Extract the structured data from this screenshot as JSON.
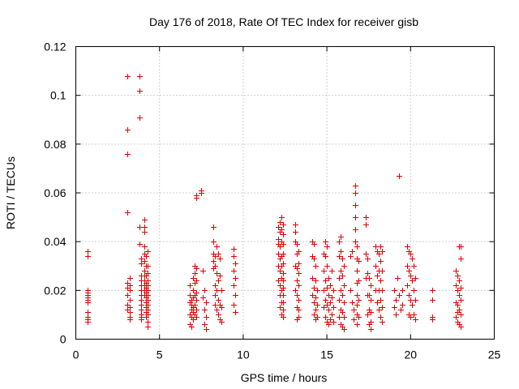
{
  "chart_data": {
    "type": "scatter",
    "title": "Day 176 of 2018, Rate Of TEC Index for receiver gisb",
    "xlabel": "GPS time / hours",
    "ylabel": "ROTI / TECUs",
    "xlim": [
      0,
      25
    ],
    "ylim": [
      0,
      0.12
    ],
    "xticks": [
      0,
      5,
      10,
      15,
      20,
      25
    ],
    "xtick_labels": [
      "0",
      "5",
      "10",
      "15",
      "20",
      "25"
    ],
    "yticks": [
      0,
      0.02,
      0.04,
      0.06,
      0.08,
      0.1,
      0.12
    ],
    "ytick_labels": [
      "0",
      "0.02",
      "0.04",
      "0.06",
      "0.08",
      "0.1",
      "0.12"
    ],
    "grid": true,
    "marker": "+",
    "color": "#e00000",
    "series": [
      {
        "name": "ROTI",
        "x": [
          0.7,
          0.7,
          0.7,
          0.7,
          0.7,
          0.7,
          0.7,
          0.7,
          0.7,
          0.7,
          0.7,
          0.7,
          3.1,
          3.1,
          3.1,
          3.1,
          3.1,
          3.1,
          3.1,
          3.1,
          3.1,
          3.2,
          3.2,
          3.2,
          3.2,
          3.2,
          3.2,
          3.2,
          3.2,
          3.8,
          3.8,
          3.8,
          3.8,
          3.8,
          3.9,
          3.9,
          3.9,
          3.9,
          3.9,
          3.9,
          3.9,
          3.9,
          3.9,
          3.9,
          3.9,
          3.9,
          3.9,
          4.1,
          4.1,
          4.1,
          4.1,
          4.1,
          4.1,
          4.1,
          4.1,
          4.1,
          4.1,
          4.1,
          4.1,
          4.2,
          4.2,
          4.2,
          4.2,
          4.2,
          4.2,
          4.2,
          4.2,
          4.2,
          4.2,
          4.2,
          4.3,
          4.3,
          4.3,
          4.3,
          4.3,
          4.3,
          4.3,
          4.3,
          4.3,
          4.3,
          4.3,
          4.3,
          4.3,
          6.8,
          6.8,
          6.8,
          6.8,
          6.8,
          6.9,
          6.9,
          6.9,
          6.9,
          6.9,
          7.0,
          7.0,
          7.0,
          7.0,
          7.0,
          7.0,
          7.1,
          7.1,
          7.1,
          7.1,
          7.1,
          7.1,
          7.2,
          7.2,
          7.2,
          7.2,
          7.2,
          7.2,
          7.2,
          7.2,
          7.5,
          7.5,
          7.6,
          7.6,
          7.7,
          7.7,
          7.7,
          7.8,
          7.8,
          7.8,
          8.2,
          8.2,
          8.2,
          8.2,
          8.2,
          8.3,
          8.3,
          8.3,
          8.3,
          8.3,
          8.4,
          8.4,
          8.4,
          8.4,
          8.5,
          8.5,
          8.5,
          8.5,
          8.6,
          8.6,
          8.6,
          8.6,
          8.7,
          8.7,
          8.7,
          9.4,
          9.4,
          9.4,
          9.4,
          9.4,
          9.5,
          9.5,
          9.5,
          9.5,
          12.1,
          12.1,
          12.1,
          12.1,
          12.1,
          12.1,
          12.2,
          12.2,
          12.2,
          12.2,
          12.2,
          12.2,
          12.2,
          12.2,
          12.3,
          12.3,
          12.3,
          12.3,
          12.3,
          12.3,
          12.3,
          12.3,
          12.3,
          12.4,
          12.4,
          12.4,
          12.4,
          12.4,
          12.4,
          12.4,
          12.4,
          12.4,
          12.4,
          12.4,
          12.4,
          13.1,
          13.1,
          13.1,
          13.1,
          13.1,
          13.2,
          13.2,
          13.2,
          13.2,
          13.2,
          13.2,
          13.2,
          13.3,
          13.3,
          13.3,
          13.3,
          13.3,
          13.3,
          13.3,
          14.1,
          14.1,
          14.1,
          14.1,
          14.2,
          14.2,
          14.2,
          14.2,
          14.2,
          14.3,
          14.3,
          14.3,
          14.3,
          14.3,
          14.4,
          14.4,
          14.4,
          14.8,
          14.8,
          14.8,
          14.8,
          14.9,
          14.9,
          14.9,
          14.9,
          14.9,
          15.0,
          15.0,
          15.0,
          15.0,
          15.0,
          15.1,
          15.1,
          15.1,
          15.1,
          15.2,
          15.2,
          15.2,
          15.3,
          15.3,
          15.3,
          15.4,
          15.4,
          15.4,
          15.7,
          15.7,
          15.7,
          15.7,
          15.7,
          15.8,
          15.8,
          15.8,
          15.8,
          15.8,
          15.8,
          15.9,
          15.9,
          15.9,
          15.9,
          15.9,
          16.0,
          16.0,
          16.0,
          16.0,
          16.0,
          16.4,
          16.4,
          16.5,
          16.5,
          16.6,
          16.6,
          16.7,
          16.7,
          16.7,
          16.7,
          16.7,
          16.7,
          16.8,
          16.8,
          16.8,
          16.8,
          16.8,
          16.8,
          16.8,
          16.8,
          16.9,
          16.9,
          16.9,
          16.9,
          17.3,
          17.3,
          17.3,
          17.3,
          17.4,
          17.4,
          17.4,
          17.4,
          17.5,
          17.5,
          17.5,
          17.5,
          17.6,
          17.6,
          17.6,
          17.6,
          17.6,
          17.9,
          17.9,
          17.9,
          18.0,
          18.0,
          18.0,
          18.1,
          18.1,
          18.1,
          18.1,
          18.2,
          18.2,
          18.2,
          18.2,
          18.2,
          18.3,
          18.3,
          18.3,
          18.3,
          18.3,
          19.0,
          19.0,
          19.1,
          19.1,
          19.2,
          19.3,
          19.3,
          19.4,
          19.5,
          19.5,
          19.8,
          19.8,
          19.8,
          19.9,
          19.9,
          19.9,
          19.9,
          20.0,
          20.0,
          20.0,
          20.0,
          20.1,
          20.1,
          20.1,
          20.2,
          20.2,
          20.2,
          20.3,
          20.3,
          20.3,
          21.3,
          21.3,
          21.3,
          21.3,
          22.7,
          22.7,
          22.7,
          22.7,
          22.8,
          22.8,
          22.8,
          22.8,
          22.8,
          22.9,
          22.9,
          22.9,
          22.9,
          22.9,
          23.0,
          23.0,
          23.0,
          23.0,
          23.0,
          23.0
        ],
        "y": [
          0.036,
          0.034,
          0.02,
          0.019,
          0.018,
          0.017,
          0.016,
          0.015,
          0.011,
          0.009,
          0.008,
          0.007,
          0.108,
          0.086,
          0.076,
          0.052,
          0.023,
          0.021,
          0.018,
          0.014,
          0.012,
          0.025,
          0.022,
          0.02,
          0.016,
          0.013,
          0.011,
          0.009,
          0.008,
          0.108,
          0.102,
          0.091,
          0.046,
          0.039,
          0.033,
          0.031,
          0.026,
          0.024,
          0.022,
          0.02,
          0.018,
          0.016,
          0.014,
          0.012,
          0.01,
          0.009,
          0.008,
          0.049,
          0.046,
          0.044,
          0.038,
          0.035,
          0.032,
          0.028,
          0.026,
          0.024,
          0.022,
          0.02,
          0.018,
          0.034,
          0.03,
          0.026,
          0.023,
          0.021,
          0.019,
          0.017,
          0.015,
          0.013,
          0.011,
          0.009,
          0.036,
          0.03,
          0.027,
          0.024,
          0.022,
          0.02,
          0.018,
          0.016,
          0.014,
          0.012,
          0.01,
          0.007,
          0.005,
          0.022,
          0.018,
          0.015,
          0.01,
          0.006,
          0.016,
          0.014,
          0.012,
          0.009,
          0.005,
          0.025,
          0.02,
          0.017,
          0.013,
          0.011,
          0.008,
          0.03,
          0.027,
          0.023,
          0.018,
          0.014,
          0.01,
          0.059,
          0.058,
          0.029,
          0.024,
          0.019,
          0.016,
          0.012,
          0.009,
          0.061,
          0.06,
          0.028,
          0.017,
          0.02,
          0.012,
          0.006,
          0.015,
          0.009,
          0.004,
          0.046,
          0.04,
          0.035,
          0.032,
          0.029,
          0.034,
          0.03,
          0.022,
          0.018,
          0.014,
          0.038,
          0.027,
          0.02,
          0.012,
          0.035,
          0.024,
          0.016,
          0.01,
          0.033,
          0.026,
          0.014,
          0.008,
          0.02,
          0.013,
          0.007,
          0.037,
          0.034,
          0.028,
          0.022,
          0.014,
          0.031,
          0.025,
          0.018,
          0.011,
          0.046,
          0.041,
          0.039,
          0.035,
          0.03,
          0.024,
          0.048,
          0.044,
          0.038,
          0.033,
          0.028,
          0.022,
          0.018,
          0.013,
          0.05,
          0.045,
          0.04,
          0.034,
          0.03,
          0.025,
          0.02,
          0.015,
          0.01,
          0.047,
          0.043,
          0.039,
          0.035,
          0.031,
          0.027,
          0.024,
          0.021,
          0.018,
          0.015,
          0.012,
          0.009,
          0.047,
          0.044,
          0.04,
          0.03,
          0.02,
          0.039,
          0.035,
          0.029,
          0.024,
          0.018,
          0.013,
          0.008,
          0.036,
          0.031,
          0.027,
          0.022,
          0.016,
          0.012,
          0.009,
          0.04,
          0.034,
          0.025,
          0.018,
          0.039,
          0.033,
          0.021,
          0.015,
          0.01,
          0.03,
          0.024,
          0.017,
          0.012,
          0.008,
          0.02,
          0.014,
          0.009,
          0.035,
          0.028,
          0.02,
          0.013,
          0.04,
          0.034,
          0.024,
          0.016,
          0.009,
          0.038,
          0.03,
          0.021,
          0.014,
          0.007,
          0.025,
          0.018,
          0.012,
          0.006,
          0.022,
          0.015,
          0.008,
          0.028,
          0.017,
          0.01,
          0.02,
          0.013,
          0.007,
          0.04,
          0.034,
          0.025,
          0.016,
          0.009,
          0.042,
          0.036,
          0.028,
          0.02,
          0.012,
          0.006,
          0.033,
          0.026,
          0.018,
          0.011,
          0.005,
          0.03,
          0.022,
          0.015,
          0.009,
          0.004,
          0.034,
          0.02,
          0.036,
          0.015,
          0.012,
          0.008,
          0.063,
          0.06,
          0.055,
          0.05,
          0.045,
          0.04,
          0.038,
          0.033,
          0.028,
          0.023,
          0.018,
          0.014,
          0.01,
          0.006,
          0.032,
          0.024,
          0.016,
          0.009,
          0.05,
          0.047,
          0.035,
          0.025,
          0.033,
          0.027,
          0.018,
          0.01,
          0.025,
          0.018,
          0.012,
          0.006,
          0.022,
          0.016,
          0.011,
          0.007,
          0.004,
          0.038,
          0.03,
          0.02,
          0.036,
          0.026,
          0.015,
          0.035,
          0.028,
          0.02,
          0.012,
          0.038,
          0.032,
          0.024,
          0.016,
          0.009,
          0.036,
          0.028,
          0.02,
          0.013,
          0.007,
          0.02,
          0.013,
          0.016,
          0.01,
          0.025,
          0.067,
          0.018,
          0.012,
          0.02,
          0.014,
          0.038,
          0.03,
          0.022,
          0.036,
          0.028,
          0.018,
          0.01,
          0.035,
          0.026,
          0.016,
          0.009,
          0.033,
          0.024,
          0.014,
          0.03,
          0.02,
          0.01,
          0.025,
          0.016,
          0.008,
          0.02,
          0.016,
          0.009,
          0.008,
          0.028,
          0.022,
          0.015,
          0.009,
          0.026,
          0.02,
          0.014,
          0.011,
          0.007,
          0.038,
          0.024,
          0.018,
          0.012,
          0.006,
          0.038,
          0.033,
          0.021,
          0.016,
          0.01,
          0.005
        ]
      }
    ]
  }
}
